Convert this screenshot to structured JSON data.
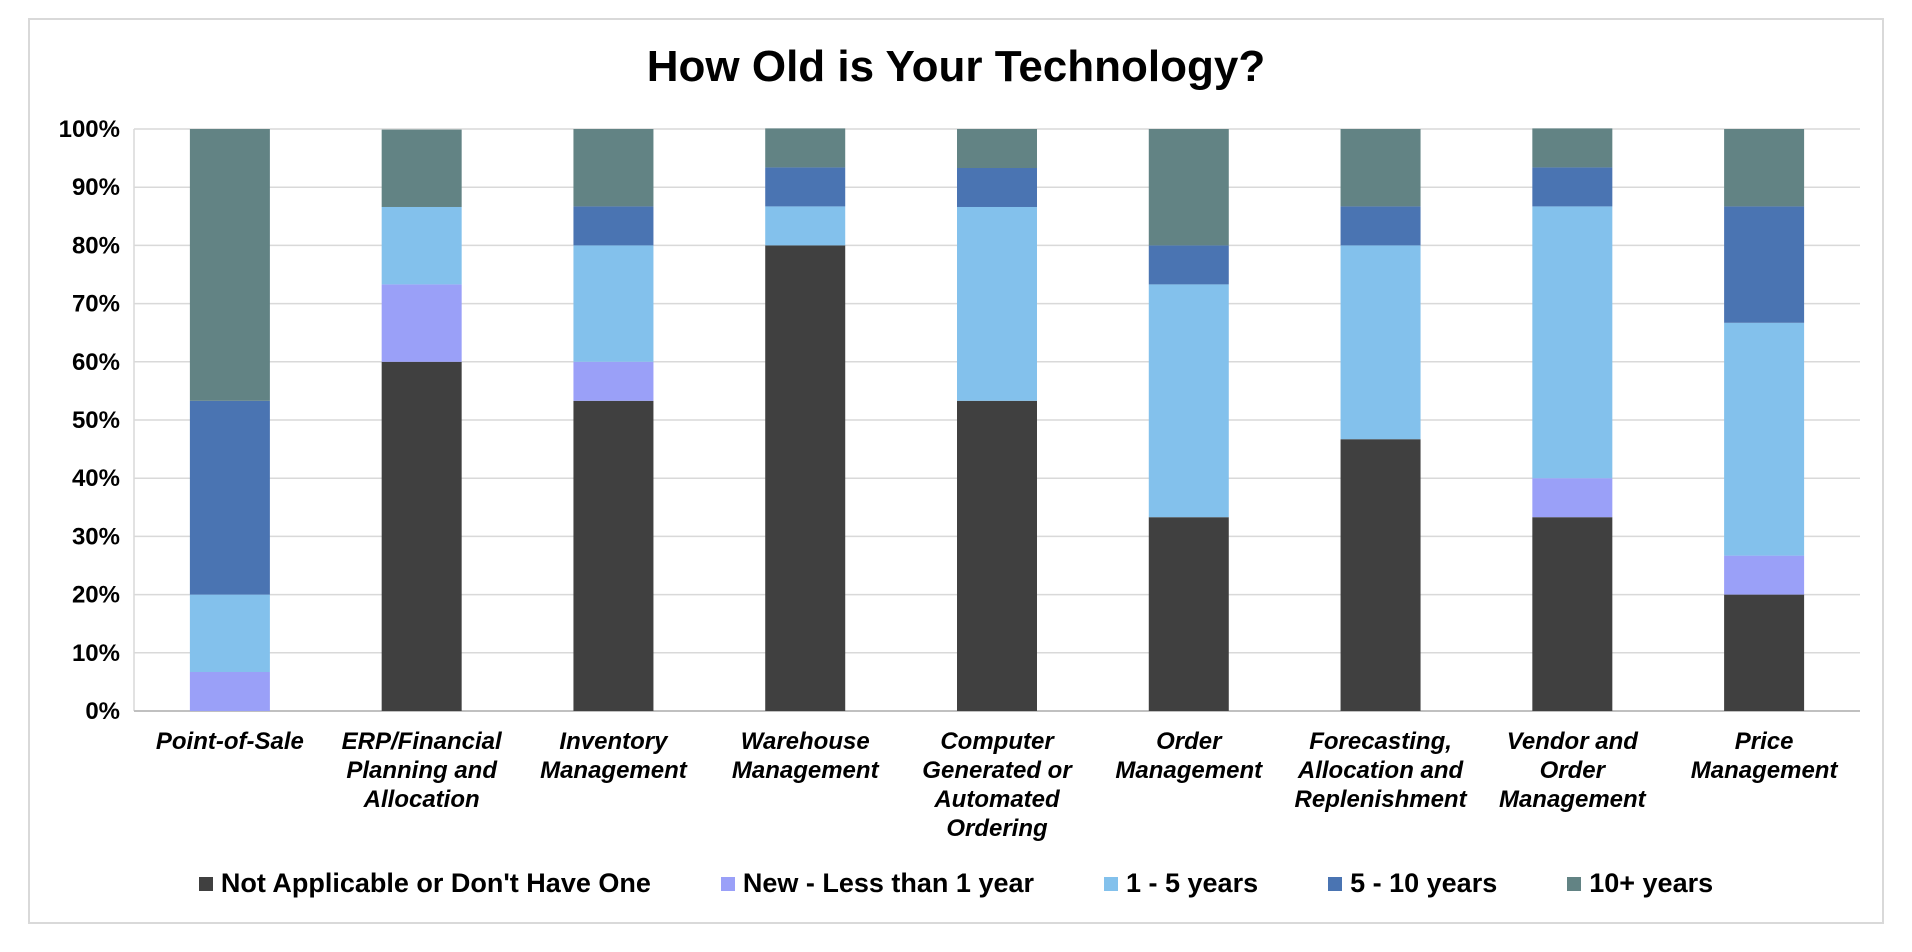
{
  "chart_data": {
    "type": "bar",
    "stacked": true,
    "percent": true,
    "title": "How Old is Your Technology?",
    "categories": [
      [
        "Point-of-Sale"
      ],
      [
        "ERP/Financial",
        "Planning and",
        "Allocation"
      ],
      [
        "Inventory",
        "Management"
      ],
      [
        "Warehouse",
        "Management"
      ],
      [
        "Computer",
        "Generated or",
        "Automated",
        "Ordering"
      ],
      [
        "Order",
        "Management"
      ],
      [
        "Forecasting,",
        "Allocation and",
        "Replenishment"
      ],
      [
        "Vendor and",
        "Order",
        "Management"
      ],
      [
        "Price",
        "Management"
      ]
    ],
    "series": [
      {
        "name": "Not Applicable or Don't Have One",
        "color": "#404040",
        "values": [
          0,
          60,
          53.3,
          80,
          53.3,
          33.3,
          46.7,
          33.3,
          20
        ]
      },
      {
        "name": "New - Less than 1 year",
        "color": "#9aa0f8",
        "values": [
          6.7,
          13.3,
          6.7,
          0,
          0,
          0,
          0,
          6.7,
          6.7
        ]
      },
      {
        "name": "1 - 5 years",
        "color": "#83c1ec",
        "values": [
          13.3,
          13.3,
          20,
          6.7,
          33.3,
          40,
          33.3,
          46.7,
          40
        ]
      },
      {
        "name": "5 - 10 years",
        "color": "#4a74b2",
        "values": [
          33.3,
          0,
          6.7,
          6.7,
          6.7,
          6.7,
          6.7,
          6.7,
          20
        ]
      },
      {
        "name": "10+ years",
        "color": "#628384",
        "values": [
          46.7,
          13.3,
          13.3,
          6.7,
          6.7,
          20,
          13.3,
          6.7,
          13.3
        ]
      }
    ],
    "ylim": [
      0,
      100
    ],
    "yticks": [
      "0%",
      "10%",
      "20%",
      "30%",
      "40%",
      "50%",
      "60%",
      "70%",
      "80%",
      "90%",
      "100%"
    ],
    "grid": true,
    "legend": "bottom"
  }
}
